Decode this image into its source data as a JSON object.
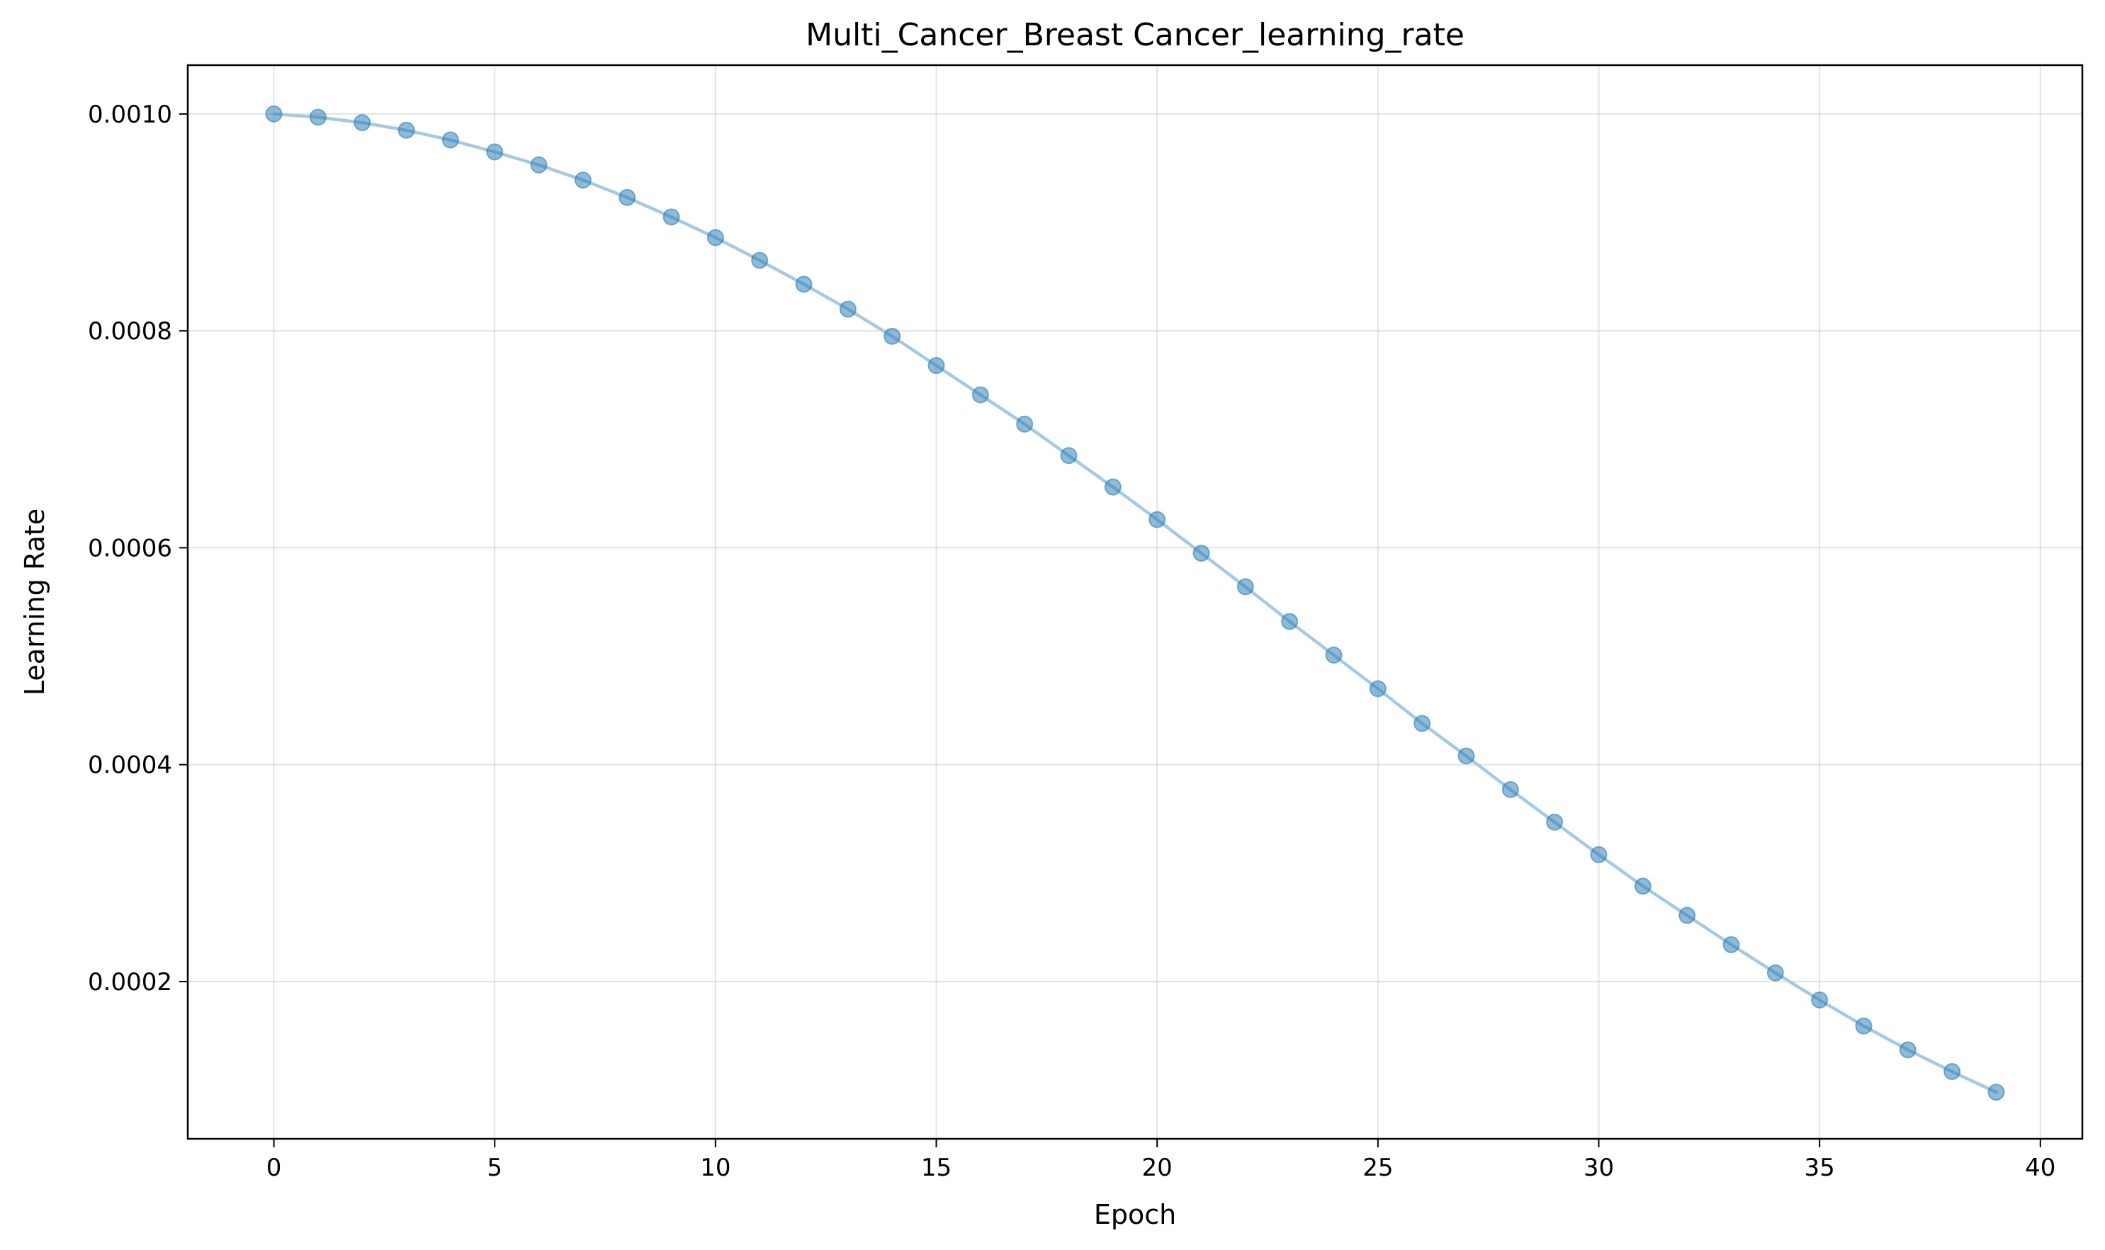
{
  "chart_data": {
    "type": "line",
    "title": "Multi_Cancer_Breast Cancer_learning_rate",
    "xlabel": "Epoch",
    "ylabel": "Learning Rate",
    "xlim": [
      -1.95,
      40.95
    ],
    "ylim": [
      5.5e-05,
      0.001045
    ],
    "xticks": [
      0,
      5,
      10,
      15,
      20,
      25,
      30,
      35,
      40
    ],
    "xtick_labels": [
      "0",
      "5",
      "10",
      "15",
      "20",
      "25",
      "30",
      "35",
      "40"
    ],
    "yticks": [
      0.0002,
      0.0004,
      0.0006,
      0.0008,
      0.001
    ],
    "ytick_labels": [
      "0.0002",
      "0.0004",
      "0.0006",
      "0.0008",
      "0.0010"
    ],
    "grid": true,
    "legend": "none",
    "colors": {
      "line": "#a6c9e2",
      "marker": "#1f77b4"
    },
    "series": [
      {
        "x": [
          0,
          1,
          2,
          3,
          4,
          5,
          6,
          7,
          8,
          9,
          10,
          11,
          12,
          13,
          14,
          15,
          16,
          17,
          18,
          19,
          20,
          21,
          22,
          23,
          24,
          25,
          26,
          27,
          28,
          29,
          30,
          31,
          32,
          33,
          34,
          35,
          36,
          37,
          38,
          39
        ],
        "y": [
          0.001,
          0.0009985,
          0.0009942,
          0.0009869,
          0.0009768,
          0.000964,
          0.0009485,
          0.0009304,
          0.0009099,
          0.0008871,
          0.0008621,
          0.0008352,
          0.0008065,
          0.0007763,
          0.0007447,
          0.000712,
          0.0006783,
          0.000644,
          0.0006092,
          0.0005741,
          0.0005391,
          0.0005043,
          0.0004699,
          0.0004363,
          0.0004035,
          0.0003719,
          0.0003417,
          0.000313,
          0.000286,
          0.0002611,
          0.0002383,
          0.0002178,
          0.0001997,
          0.0001842,
          0.0001713,
          0.0001612,
          0.0001539,
          0.0001495,
          0.000148,
          0.0001
        ],
        "y_read": [
          0.001,
          0.000997,
          0.000992,
          0.000985,
          0.000976,
          0.000965,
          0.000953,
          0.000939,
          0.000923,
          0.000905,
          0.000886,
          0.000865,
          0.000843,
          0.00082,
          0.000795,
          0.000768,
          0.000741,
          0.000714,
          0.000685,
          0.000656,
          0.000626,
          0.000595,
          0.000564,
          0.000532,
          0.000501,
          0.00047,
          0.000438,
          0.000408,
          0.000377,
          0.000347,
          0.000317,
          0.000288,
          0.000261,
          0.000234,
          0.000208,
          0.000183,
          0.000159,
          0.000137,
          0.000117,
          9.8e-05
        ]
      }
    ]
  }
}
